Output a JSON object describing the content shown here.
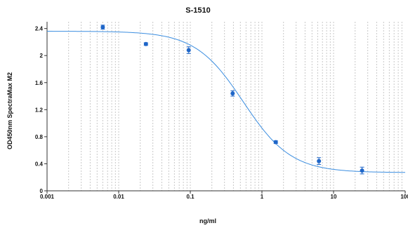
{
  "chart_data": {
    "type": "scatter",
    "title": "S-1510",
    "xlabel": "ng/ml",
    "ylabel": "OD450nm SpectraMax M2",
    "xscale": "log",
    "xlim": [
      0.001,
      100
    ],
    "ylim": [
      0,
      2.5
    ],
    "x_ticks": [
      0.001,
      0.01,
      0.1,
      1,
      10,
      100
    ],
    "x_tick_labels": [
      "0.001",
      "0.01",
      "0.1",
      "1",
      "10",
      "100"
    ],
    "y_ticks": [
      0,
      0.4,
      0.8,
      1.2,
      1.6,
      2,
      2.4
    ],
    "y_tick_labels": [
      "0",
      "0.4",
      "0.8",
      "1.2",
      "1.6",
      "2",
      "2.4"
    ],
    "grid": "vertical log grid",
    "colors": {
      "series": "#1f66c8",
      "curve": "#3c8ee0",
      "grid": "#c8c8c8",
      "axis": "#333333"
    },
    "points": [
      {
        "x": 0.006,
        "y": 2.42,
        "err": 0.03
      },
      {
        "x": 0.024,
        "y": 2.17,
        "err": 0.02
      },
      {
        "x": 0.095,
        "y": 2.08,
        "err": 0.05
      },
      {
        "x": 0.39,
        "y": 1.44,
        "err": 0.04
      },
      {
        "x": 1.56,
        "y": 0.72,
        "err": 0.02
      },
      {
        "x": 6.25,
        "y": 0.44,
        "err": 0.05
      },
      {
        "x": 25,
        "y": 0.3,
        "err": 0.05
      }
    ],
    "fit": {
      "model": "4PL",
      "top": 2.36,
      "bottom": 0.27,
      "ec50": 0.55,
      "hill": 1.3
    }
  }
}
